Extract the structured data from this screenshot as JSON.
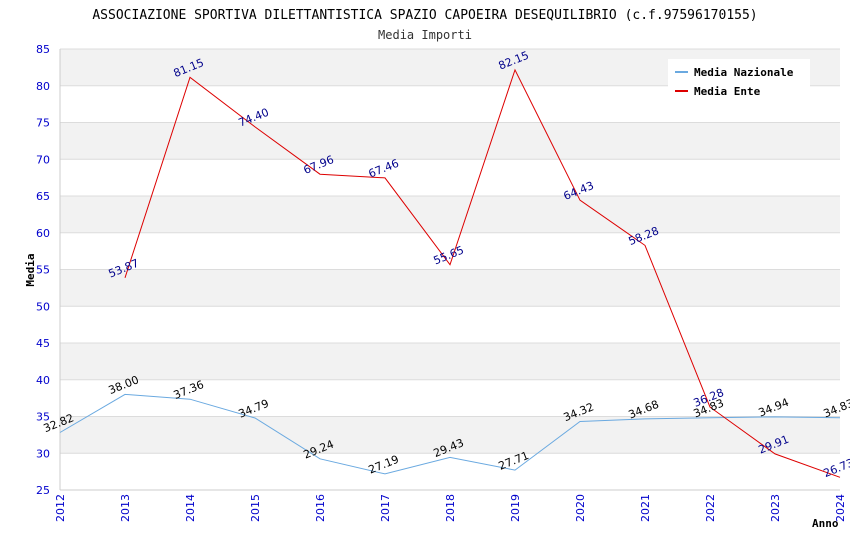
{
  "chart_data": {
    "type": "line",
    "title": "ASSOCIAZIONE SPORTIVA DILETTANTISTICA SPAZIO CAPOEIRA DESEQUILIBRIO (c.f.97596170155)",
    "subtitle": "Media Importi",
    "xlabel": "Anno",
    "ylabel": "Media",
    "ylim": [
      25,
      85
    ],
    "yticks": [
      "25",
      "30",
      "35",
      "40",
      "45",
      "50",
      "55",
      "60",
      "65",
      "70",
      "75",
      "80",
      "85"
    ],
    "categories": [
      "2012",
      "2013",
      "2014",
      "2015",
      "2016",
      "2017",
      "2018",
      "2019",
      "2020",
      "2021",
      "2022",
      "2023",
      "2024"
    ],
    "legend_position": "top-right",
    "series": [
      {
        "name": "Media Nazionale",
        "color": "#6aa9e0",
        "values": [
          32.82,
          38.0,
          37.36,
          34.79,
          29.24,
          27.19,
          29.43,
          27.71,
          34.32,
          34.68,
          34.83,
          34.94,
          34.83
        ],
        "labels": [
          "32.82",
          "38.00",
          "37.36",
          "34.79",
          "29.24",
          "27.19",
          "29.43",
          "27.71",
          "34.32",
          "34.68",
          "34.83",
          "34.94",
          "34.83"
        ]
      },
      {
        "name": "Media Ente",
        "color": "#dd0000",
        "values": [
          null,
          53.87,
          81.15,
          74.4,
          67.96,
          67.46,
          55.65,
          82.15,
          64.43,
          58.28,
          36.28,
          29.91,
          26.73
        ],
        "labels": [
          null,
          "53.87",
          "81.15",
          "74.40",
          "67.96",
          "67.46",
          "55.65",
          "82.15",
          "64.43",
          "58.28",
          "36.28",
          "29.91",
          "26.73"
        ]
      }
    ]
  }
}
